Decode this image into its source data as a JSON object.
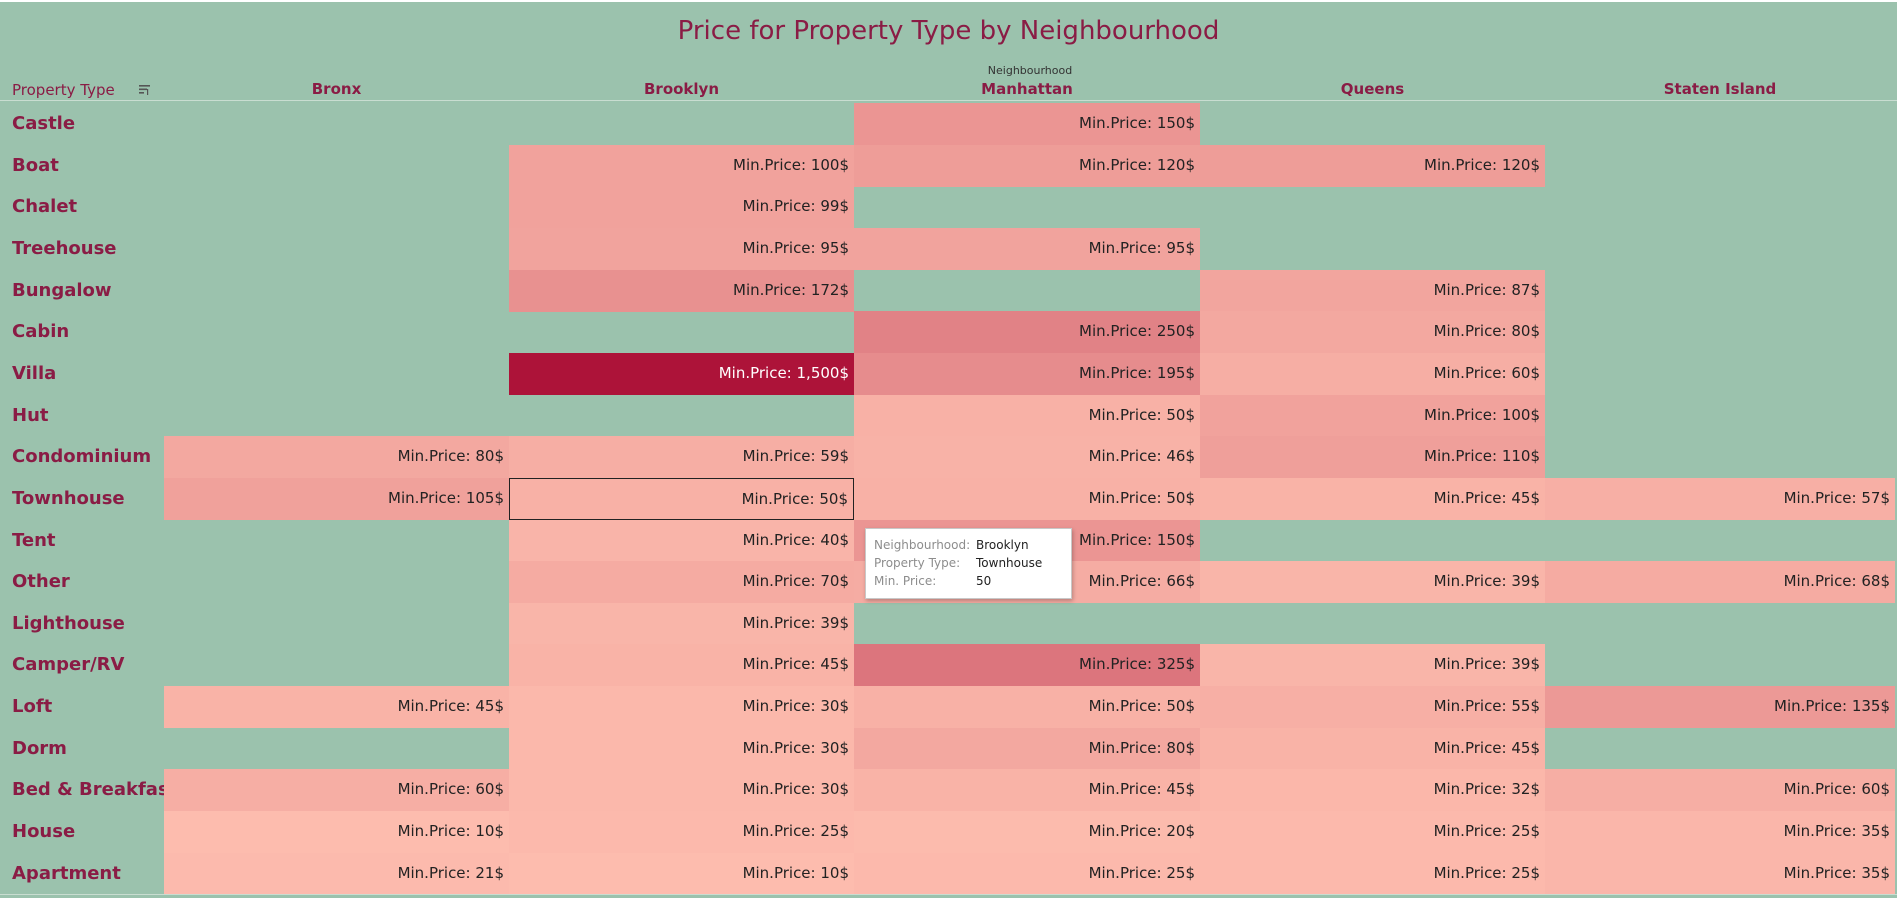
{
  "colors": {
    "background": "#9bc2ad",
    "accent": "#8a1c45",
    "low_price": "#fdbcae",
    "high_price": "#ad1339"
  },
  "chart_data": {
    "type": "table",
    "title": "Price for Property Type by Neighbourhood",
    "column_group_label": "Neighbourhood",
    "row_header_label": "Property Type",
    "sort_icon": "sort-icon",
    "columns": [
      "Bronx",
      "Brooklyn",
      "Manhattan",
      "Queens",
      "Staten Island"
    ],
    "value_prefix": "Min.Price: ",
    "value_suffix": "$",
    "rows": [
      {
        "label": "Castle",
        "values": [
          null,
          null,
          150,
          null,
          null
        ]
      },
      {
        "label": "Boat",
        "values": [
          null,
          100,
          120,
          120,
          null
        ]
      },
      {
        "label": "Chalet",
        "values": [
          null,
          99,
          null,
          null,
          null
        ]
      },
      {
        "label": "Treehouse",
        "values": [
          null,
          95,
          95,
          null,
          null
        ]
      },
      {
        "label": "Bungalow",
        "values": [
          null,
          172,
          null,
          87,
          null
        ]
      },
      {
        "label": "Cabin",
        "values": [
          null,
          null,
          250,
          80,
          null
        ]
      },
      {
        "label": "Villa",
        "values": [
          null,
          1500,
          195,
          60,
          null
        ]
      },
      {
        "label": "Hut",
        "values": [
          null,
          null,
          50,
          100,
          null
        ]
      },
      {
        "label": "Condominium",
        "values": [
          80,
          59,
          46,
          110,
          null
        ]
      },
      {
        "label": "Townhouse",
        "values": [
          105,
          50,
          50,
          45,
          57
        ]
      },
      {
        "label": "Tent",
        "values": [
          null,
          40,
          150,
          null,
          null
        ]
      },
      {
        "label": "Other",
        "values": [
          null,
          70,
          66,
          39,
          68
        ]
      },
      {
        "label": "Lighthouse",
        "values": [
          null,
          39,
          null,
          null,
          null
        ]
      },
      {
        "label": "Camper/RV",
        "values": [
          null,
          45,
          325,
          39,
          null
        ]
      },
      {
        "label": "Loft",
        "values": [
          45,
          30,
          50,
          55,
          135
        ]
      },
      {
        "label": "Dorm",
        "values": [
          null,
          30,
          80,
          45,
          null
        ]
      },
      {
        "label": "Bed & Breakfast",
        "values": [
          60,
          30,
          45,
          32,
          60
        ]
      },
      {
        "label": "House",
        "values": [
          10,
          25,
          20,
          25,
          35
        ]
      },
      {
        "label": "Apartment",
        "values": [
          21,
          10,
          25,
          25,
          35
        ]
      }
    ],
    "selected_cell": {
      "row": "Townhouse",
      "column": "Brooklyn"
    }
  },
  "tooltip": {
    "neighbourhood_label": "Neighbourhood:",
    "neighbourhood_value": "Brooklyn",
    "property_type_label": "Property Type:",
    "property_type_value": "Townhouse",
    "min_price_label": "Min. Price:",
    "min_price_value": "50"
  }
}
